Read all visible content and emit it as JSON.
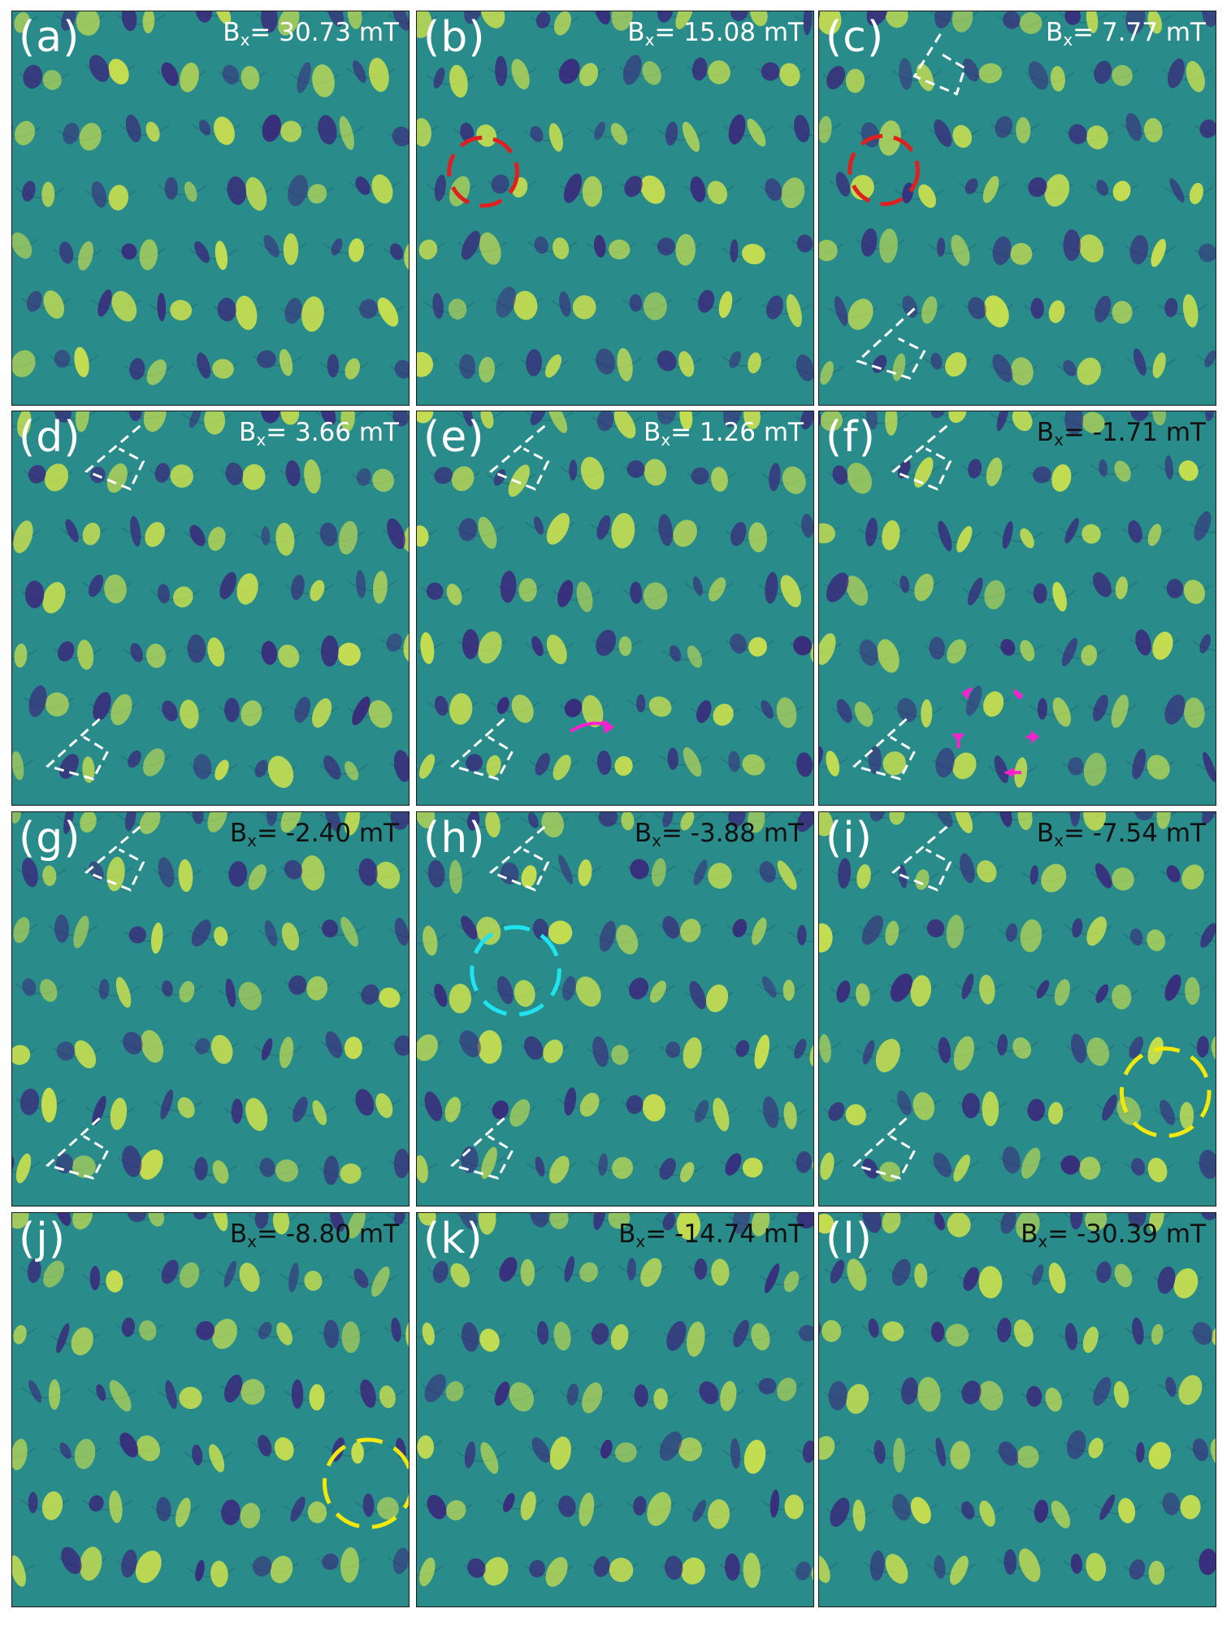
{
  "figure": {
    "panels": [
      {
        "id": "a",
        "label": "(a)",
        "field_prefix": "B",
        "field_sub": "x",
        "field_value": "= 30.73 mT",
        "label_color": "#ffffff",
        "field_color": "#ffffff",
        "seed": 11
      },
      {
        "id": "b",
        "label": "(b)",
        "field_prefix": "B",
        "field_sub": "x",
        "field_value": "= 15.08 mT",
        "label_color": "#ffffff",
        "field_color": "#ffffff",
        "seed": 23
      },
      {
        "id": "c",
        "label": "(c)",
        "field_prefix": "B",
        "field_sub": "x",
        "field_value": "= 7.77 mT",
        "label_color": "#ffffff",
        "field_color": "#ffffff",
        "seed": 37
      },
      {
        "id": "d",
        "label": "(d)",
        "field_prefix": "B",
        "field_sub": "x",
        "field_value": "= 3.66 mT",
        "label_color": "#ffffff",
        "field_color": "#ffffff",
        "seed": 41
      },
      {
        "id": "e",
        "label": "(e)",
        "field_prefix": "B",
        "field_sub": "x",
        "field_value": "= 1.26 mT",
        "label_color": "#ffffff",
        "field_color": "#ffffff",
        "seed": 53
      },
      {
        "id": "f",
        "label": "(f)",
        "field_prefix": "B",
        "field_sub": "x",
        "field_value": "= -1.71 mT",
        "label_color": "#ffffff",
        "field_color": "#111111",
        "seed": 67
      },
      {
        "id": "g",
        "label": "(g)",
        "field_prefix": "B",
        "field_sub": "x",
        "field_value": "= -2.40 mT",
        "label_color": "#ffffff",
        "field_color": "#111111",
        "seed": 71
      },
      {
        "id": "h",
        "label": "(h)",
        "field_prefix": "B",
        "field_sub": "x",
        "field_value": "= -3.88 mT",
        "label_color": "#ffffff",
        "field_color": "#111111",
        "seed": 83
      },
      {
        "id": "i",
        "label": "(i)",
        "field_prefix": "B",
        "field_sub": "x",
        "field_value": "= -7.54 mT",
        "label_color": "#ffffff",
        "field_color": "#111111",
        "seed": 97
      },
      {
        "id": "j",
        "label": "(j)",
        "field_prefix": "B",
        "field_sub": "x",
        "field_value": "= -8.80 mT",
        "label_color": "#ffffff",
        "field_color": "#111111",
        "seed": 101
      },
      {
        "id": "k",
        "label": "(k)",
        "field_prefix": "B",
        "field_sub": "x",
        "field_value": "= -14.74 mT",
        "label_color": "#ffffff",
        "field_color": "#111111",
        "seed": 113
      },
      {
        "id": "l",
        "label": "(l)",
        "field_prefix": "B",
        "field_sub": "x",
        "field_value": "= -30.39 mT",
        "label_color": "#ffffff",
        "field_color": "#111111",
        "seed": 127
      }
    ],
    "colormap": {
      "low": "#3b1f7a",
      "mid": "#2a8c8a",
      "high": "#d6e64a"
    },
    "annotation_colors": {
      "red_circle": "#e0201e",
      "cyan_circle": "#1fe3f0",
      "yellow_circle": "#f2e80c",
      "magenta_arrows": "#ff1fcf",
      "white_dashes": "#ffffff"
    }
  }
}
